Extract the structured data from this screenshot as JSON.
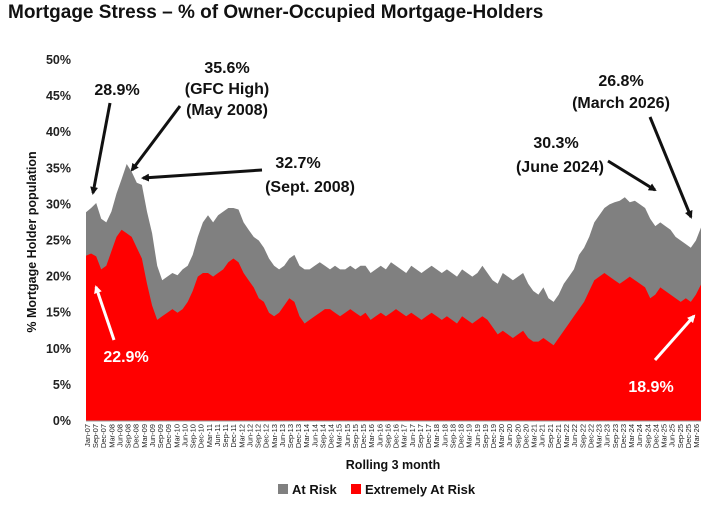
{
  "chart_data": {
    "type": "area",
    "title": "Mortgage Stress – % of Owner-Occupied Mortgage-Holders",
    "xlabel": "Rolling 3 month",
    "ylabel": "% Mortgage Holder population",
    "ylim": [
      0,
      50
    ],
    "yticks": [
      "0%",
      "5%",
      "10%",
      "15%",
      "20%",
      "25%",
      "30%",
      "35%",
      "40%",
      "45%",
      "50%"
    ],
    "grid": false,
    "legend_position": "bottom",
    "colors": {
      "at_risk": "#808080",
      "extremely_at_risk": "#ff0000"
    },
    "x_tick_labels": [
      "Jan-07",
      "Sep-07",
      "Dec-07",
      "Mar-08",
      "Jun-08",
      "Sep-08",
      "Dec-08",
      "Mar-09",
      "Jun-09",
      "Sep-09",
      "Dec-09",
      "Mar-10",
      "Jun-10",
      "Sep-10",
      "Dec-10",
      "Mar-11",
      "Jun-11",
      "Sep-11",
      "Dec-11",
      "Mar-12",
      "Jun-12",
      "Sep-12",
      "Dec-12",
      "Mar-13",
      "Jun-13",
      "Sep-13",
      "Dec-13",
      "Mar-14",
      "Jun-14",
      "Sep-14",
      "Dec-14",
      "Mar-15",
      "Jun-15",
      "Sep-15",
      "Dec-15",
      "Mar-16",
      "Jun-16",
      "Sep-16",
      "Dec-16",
      "Mar-17",
      "Jun-17",
      "Sep-17",
      "Dec-17",
      "Mar-18",
      "Jun-18",
      "Sep-18",
      "Dec-18",
      "Mar-19",
      "Jun-19",
      "Sep-19",
      "Dec-19",
      "Mar-20",
      "Jun-20",
      "Sep-20",
      "Dec-20",
      "Mar-21",
      "Jun-21",
      "Sep-21",
      "Dec-21",
      "Mar-22",
      "Jun-22",
      "Sep-22",
      "Dec-22",
      "Mar-23",
      "Jun-23",
      "Sep-23",
      "Dec-23",
      "Mar-24",
      "Jun-24",
      "Sep-24",
      "Dec-24",
      "Mar-25",
      "Jun-25",
      "Sep-25",
      "Dec-25",
      "Mar-26"
    ],
    "series": [
      {
        "name": "At Risk",
        "values": [
          28.9,
          29.5,
          30.2,
          28.0,
          27.5,
          29.0,
          31.5,
          33.5,
          35.6,
          34.5,
          33.0,
          32.7,
          29.0,
          26.0,
          21.5,
          19.5,
          20.0,
          20.5,
          20.2,
          21.0,
          21.5,
          23.0,
          25.5,
          27.5,
          28.5,
          27.5,
          28.5,
          29.0,
          29.5,
          29.5,
          29.3,
          27.5,
          26.5,
          25.5,
          25.0,
          24.0,
          22.5,
          21.5,
          21.0,
          21.5,
          22.5,
          23.0,
          21.5,
          21.0,
          21.0,
          21.5,
          22.0,
          21.5,
          21.0,
          21.5,
          21.0,
          21.0,
          21.5,
          21.0,
          21.5,
          21.5,
          20.5,
          21.0,
          21.5,
          21.0,
          22.0,
          21.5,
          21.0,
          20.5,
          21.5,
          21.0,
          20.5,
          21.0,
          21.5,
          21.0,
          20.5,
          21.0,
          20.5,
          20.0,
          21.0,
          20.5,
          20.0,
          20.5,
          21.5,
          20.5,
          19.5,
          19.0,
          20.5,
          20.0,
          19.5,
          20.0,
          20.5,
          19.0,
          18.0,
          17.5,
          18.5,
          17.0,
          16.5,
          17.5,
          19.0,
          20.0,
          21.0,
          23.0,
          24.0,
          25.5,
          27.5,
          28.5,
          29.5,
          30.0,
          30.3,
          30.5,
          31.0,
          30.3,
          30.5,
          30.0,
          29.5,
          28.0,
          27.0,
          27.5,
          27.0,
          26.5,
          25.5,
          25.0,
          24.5,
          24.0,
          25.0,
          26.8
        ]
      },
      {
        "name": "Extremely At Risk",
        "values": [
          22.9,
          23.2,
          22.8,
          21.0,
          21.5,
          23.5,
          25.5,
          26.5,
          26.0,
          25.5,
          24.0,
          22.5,
          19.0,
          16.0,
          14.0,
          14.5,
          15.0,
          15.5,
          15.0,
          15.5,
          16.5,
          18.0,
          20.0,
          20.5,
          20.5,
          20.0,
          20.5,
          21.0,
          22.0,
          22.5,
          22.0,
          20.5,
          19.5,
          18.5,
          17.0,
          16.5,
          15.0,
          14.5,
          15.0,
          16.0,
          17.0,
          16.5,
          14.5,
          13.5,
          14.0,
          14.5,
          15.0,
          15.5,
          15.5,
          15.0,
          14.5,
          15.0,
          15.5,
          15.0,
          14.5,
          15.0,
          14.0,
          14.5,
          15.0,
          14.5,
          15.0,
          15.5,
          15.0,
          14.5,
          15.0,
          14.5,
          14.0,
          14.5,
          15.0,
          14.5,
          14.0,
          14.5,
          14.0,
          13.5,
          14.5,
          14.0,
          13.5,
          14.0,
          14.5,
          14.0,
          13.0,
          12.0,
          12.5,
          12.0,
          11.5,
          12.0,
          12.5,
          11.5,
          11.0,
          11.0,
          11.5,
          11.0,
          10.5,
          11.5,
          12.5,
          13.5,
          14.5,
          15.5,
          16.5,
          18.0,
          19.5,
          20.0,
          20.5,
          20.0,
          19.5,
          19.0,
          19.5,
          20.0,
          19.5,
          19.0,
          18.5,
          17.0,
          17.5,
          18.5,
          18.0,
          17.5,
          17.0,
          16.5,
          17.0,
          16.5,
          17.5,
          18.9
        ]
      }
    ],
    "annotations": [
      {
        "text": "28.9%"
      },
      {
        "text": "35.6%"
      },
      {
        "text": "(GFC High)"
      },
      {
        "text": "(May 2008)"
      },
      {
        "text": "32.7%"
      },
      {
        "text": "(Sept. 2008)"
      },
      {
        "text": "30.3%"
      },
      {
        "text": "(June 2024)"
      },
      {
        "text": "26.8%"
      },
      {
        "text": "(March 2026)"
      },
      {
        "text": "22.9%"
      },
      {
        "text": "18.9%"
      }
    ]
  }
}
